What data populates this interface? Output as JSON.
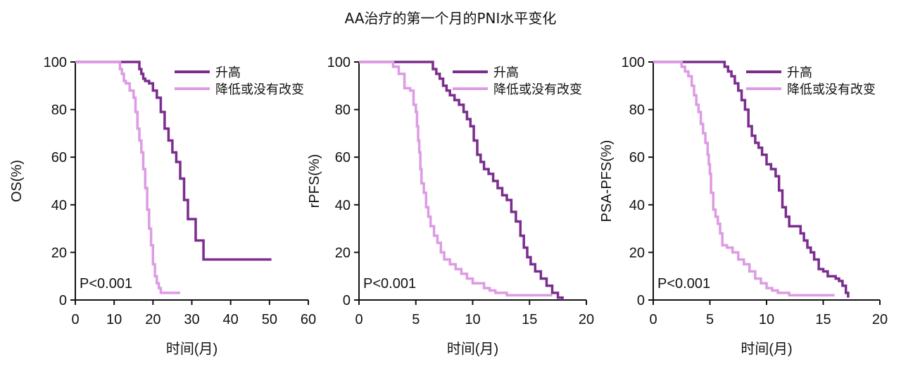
{
  "title": "AA治疗的第一个月的PNI水平变化",
  "colors": {
    "high": "#7b2d8e",
    "low": "#dd9be3",
    "axis": "#111111"
  },
  "chart_data": [
    {
      "type": "line",
      "step": true,
      "ylabel": "OS(%)",
      "xlabel": "时间(月)",
      "xlim": [
        0,
        60
      ],
      "ylim": [
        0,
        100
      ],
      "xticks": [
        0,
        10,
        20,
        30,
        40,
        50,
        60
      ],
      "yticks": [
        0,
        20,
        40,
        60,
        80,
        100
      ],
      "annotation": "P<0.001",
      "legend_position": "top-right",
      "series": [
        {
          "name": "升高",
          "color_key": "high",
          "x": [
            0,
            16,
            16.5,
            17,
            17.5,
            18,
            19,
            20,
            21,
            22,
            23,
            24,
            25,
            26,
            27,
            28,
            29,
            31,
            33,
            40,
            50.5
          ],
          "y": [
            100,
            100,
            97,
            95,
            93,
            92,
            91,
            88,
            85,
            79,
            72,
            67,
            62,
            58,
            51,
            42,
            34,
            25,
            17,
            17,
            17
          ]
        },
        {
          "name": "降低或没有改变",
          "color_key": "low",
          "x": [
            0,
            11,
            11.5,
            12,
            12.5,
            13,
            14,
            15,
            15.5,
            16,
            16.5,
            17,
            17.5,
            18,
            18.5,
            19,
            19.5,
            20,
            20.5,
            21,
            21.5,
            22,
            27
          ],
          "y": [
            100,
            100,
            97,
            95,
            92,
            91,
            88,
            85,
            79,
            72,
            67,
            62,
            55,
            47,
            38,
            30,
            23,
            15,
            10,
            7,
            5,
            3,
            3
          ]
        }
      ]
    },
    {
      "type": "line",
      "step": true,
      "ylabel": "rPFS(%)",
      "xlabel": "时间(月)",
      "xlim": [
        0,
        20
      ],
      "ylim": [
        0,
        100
      ],
      "xticks": [
        0,
        5,
        10,
        15,
        20
      ],
      "yticks": [
        0,
        20,
        40,
        60,
        80,
        100
      ],
      "annotation": "P<0.001",
      "legend_position": "top-right",
      "series": [
        {
          "name": "升高",
          "color_key": "high",
          "x": [
            0,
            6.2,
            6.5,
            6.8,
            7.1,
            7.4,
            7.7,
            8.0,
            8.4,
            8.8,
            9.2,
            9.5,
            9.8,
            10.1,
            10.4,
            10.7,
            11.0,
            11.4,
            11.8,
            12.2,
            12.6,
            13.0,
            13.4,
            13.8,
            14.2,
            14.5,
            14.8,
            15.1,
            15.5,
            16.0,
            16.5,
            17.0,
            17.5,
            17.9
          ],
          "y": [
            100,
            100,
            97,
            95,
            93,
            90,
            88,
            86,
            84,
            82,
            79,
            76,
            73,
            67,
            61,
            58,
            55,
            53,
            50,
            47,
            44,
            42,
            37,
            33,
            27,
            22,
            18,
            15,
            12,
            9,
            6,
            3,
            1,
            0
          ]
        },
        {
          "name": "降低或没有改变",
          "color_key": "low",
          "x": [
            0,
            2.5,
            3.0,
            3.5,
            4.0,
            4.5,
            4.8,
            5.0,
            5.1,
            5.2,
            5.3,
            5.4,
            5.5,
            5.7,
            5.9,
            6.1,
            6.3,
            6.6,
            6.9,
            7.2,
            7.5,
            8.0,
            8.5,
            9.0,
            9.5,
            10.0,
            11.0,
            11.5,
            12.0,
            13.0,
            14.0,
            17.0
          ],
          "y": [
            100,
            100,
            98,
            95,
            89,
            88,
            82,
            79,
            73,
            67,
            62,
            55,
            49,
            45,
            39,
            35,
            31,
            27,
            24,
            20,
            17,
            15,
            13,
            11,
            9,
            7,
            5,
            4,
            3,
            2,
            2,
            2
          ]
        }
      ]
    },
    {
      "type": "line",
      "step": true,
      "ylabel": "PSA-PFS(%)",
      "xlabel": "时间(月)",
      "xlim": [
        0,
        20
      ],
      "ylim": [
        0,
        100
      ],
      "xticks": [
        0,
        5,
        10,
        15,
        20
      ],
      "yticks": [
        0,
        20,
        40,
        60,
        80,
        100
      ],
      "annotation": "P<0.001",
      "legend_position": "top-right",
      "series": [
        {
          "name": "升高",
          "color_key": "high",
          "x": [
            0,
            6.0,
            6.3,
            6.6,
            6.9,
            7.2,
            7.5,
            7.8,
            8.1,
            8.4,
            8.7,
            9.0,
            9.3,
            9.6,
            10.0,
            10.4,
            10.8,
            11.1,
            11.4,
            11.7,
            12.0,
            12.6,
            13.0,
            13.3,
            13.6,
            13.9,
            14.2,
            14.6,
            15.0,
            15.4,
            15.8,
            16.1,
            16.4,
            16.7,
            17.0,
            17.2
          ],
          "y": [
            100,
            100,
            98,
            96,
            94,
            91,
            88,
            84,
            80,
            73,
            69,
            66,
            64,
            61,
            57,
            55,
            52,
            46,
            39,
            35,
            31,
            31,
            28,
            25,
            22,
            20,
            17,
            13,
            12,
            10,
            10,
            9,
            8,
            6,
            3,
            1
          ]
        },
        {
          "name": "降低或没有改变",
          "color_key": "low",
          "x": [
            0,
            2.2,
            2.5,
            2.8,
            3.1,
            3.4,
            3.6,
            3.8,
            4.0,
            4.2,
            4.4,
            4.6,
            4.8,
            4.9,
            5.0,
            5.1,
            5.3,
            5.5,
            5.7,
            5.9,
            6.1,
            6.5,
            7.0,
            7.5,
            8.0,
            8.5,
            9.0,
            9.5,
            10.0,
            10.5,
            11.0,
            12.0,
            16.0
          ],
          "y": [
            100,
            100,
            98,
            96,
            94,
            90,
            86,
            82,
            79,
            74,
            70,
            66,
            61,
            57,
            53,
            45,
            38,
            35,
            32,
            28,
            23,
            22,
            20,
            17,
            15,
            12,
            9,
            7,
            5,
            4,
            3,
            2,
            2
          ]
        }
      ]
    }
  ]
}
